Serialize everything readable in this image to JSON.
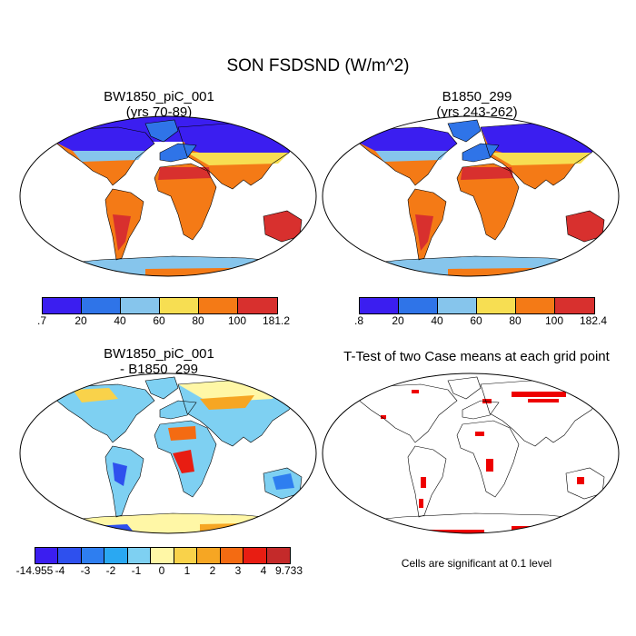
{
  "figure": {
    "title": "SON FSDSND (W/m^2)",
    "panels": [
      {
        "title_line1": "BW1850_piC_001",
        "title_line2": "(yrs 70-89)"
      },
      {
        "title_line1": "B1850_299",
        "title_line2": "(yrs 243-262)"
      },
      {
        "title_line1": "BW1850_piC_001",
        "title_line2": "- B1850_299"
      },
      {
        "title_line1": "T-Test of two Case means at each grid point"
      }
    ],
    "note": "Cells are significant at 0.1 level"
  },
  "colorbars": {
    "cb1": {
      "labels": [
        ".7",
        "20",
        "40",
        "60",
        "80",
        "100",
        "181.2"
      ],
      "colors": [
        "#3b1ef0",
        "#2f74e8",
        "#86c5ec",
        "#f7de52",
        "#f47a16",
        "#d8302e"
      ]
    },
    "cb2": {
      "labels": [
        ".8",
        "20",
        "40",
        "60",
        "80",
        "100",
        "182.4"
      ],
      "colors": [
        "#3b1ef0",
        "#2f74e8",
        "#86c5ec",
        "#f7de52",
        "#f47a16",
        "#d8302e"
      ]
    },
    "cb3": {
      "labels": [
        "-14.955",
        "-4",
        "-3",
        "-2",
        "-1",
        "0",
        "1",
        "2",
        "3",
        "4",
        "9.733"
      ],
      "colors": [
        "#3b1ef0",
        "#2e50ee",
        "#2e7ef0",
        "#2aa8f2",
        "#7ed0f2",
        "#fff7a6",
        "#f9d24a",
        "#f6a623",
        "#f46b12",
        "#e81d12",
        "#c42a2a"
      ]
    }
  }
}
